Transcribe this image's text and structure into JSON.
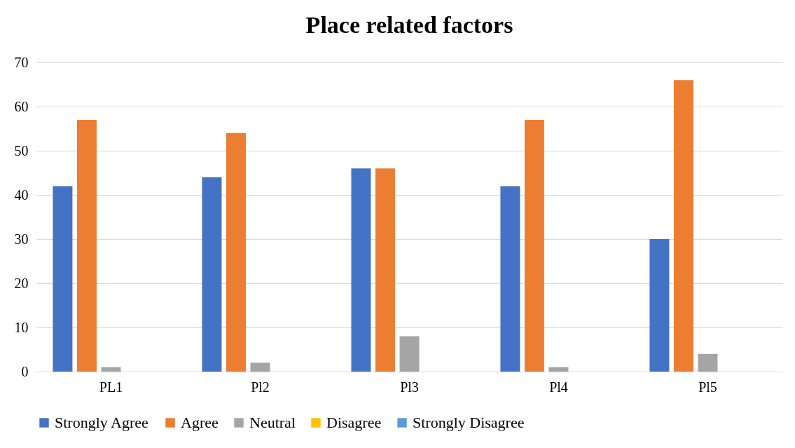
{
  "chart_data": {
    "type": "bar",
    "title": "Place related factors",
    "categories": [
      "PL1",
      "Pl2",
      "Pl3",
      "Pl4",
      "Pl5"
    ],
    "series": [
      {
        "name": "Strongly Agree",
        "color": "#4472c4",
        "values": [
          42,
          44,
          46,
          42,
          30
        ]
      },
      {
        "name": "Agree",
        "color": "#ed7d31",
        "values": [
          57,
          54,
          46,
          57,
          66
        ]
      },
      {
        "name": "Neutral",
        "color": "#a5a5a5",
        "values": [
          1,
          2,
          8,
          1,
          4
        ]
      },
      {
        "name": "Disagree",
        "color": "#ffc000",
        "values": [
          0,
          0,
          0,
          0,
          0
        ]
      },
      {
        "name": "Strongly Disagree",
        "color": "#5b9bd5",
        "values": [
          0,
          0,
          0,
          0,
          0
        ]
      }
    ],
    "ylim": [
      0,
      70
    ],
    "yticks": [
      0,
      10,
      20,
      30,
      40,
      50,
      60,
      70
    ],
    "grid": "y",
    "legend": "bottom"
  }
}
